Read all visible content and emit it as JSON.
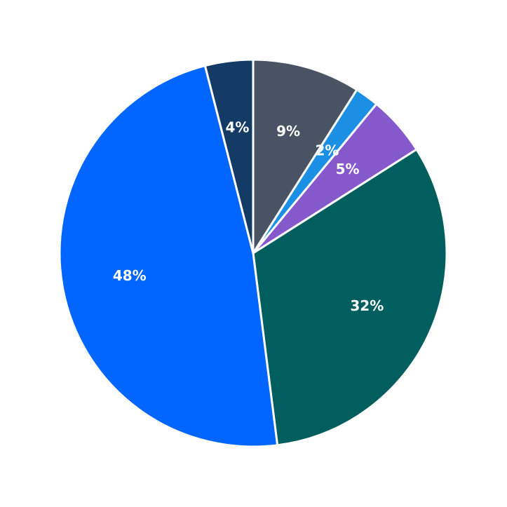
{
  "chart_data": {
    "type": "pie",
    "values": [
      9,
      2,
      5,
      32,
      48,
      4
    ],
    "value_labels": [
      "9%",
      "2%",
      "5%",
      "32%",
      "48%",
      "4%"
    ],
    "colors": [
      "#4a5363",
      "#1a8fe3",
      "#8558cc",
      "#005f5e",
      "#0066ff",
      "#143a66"
    ]
  }
}
